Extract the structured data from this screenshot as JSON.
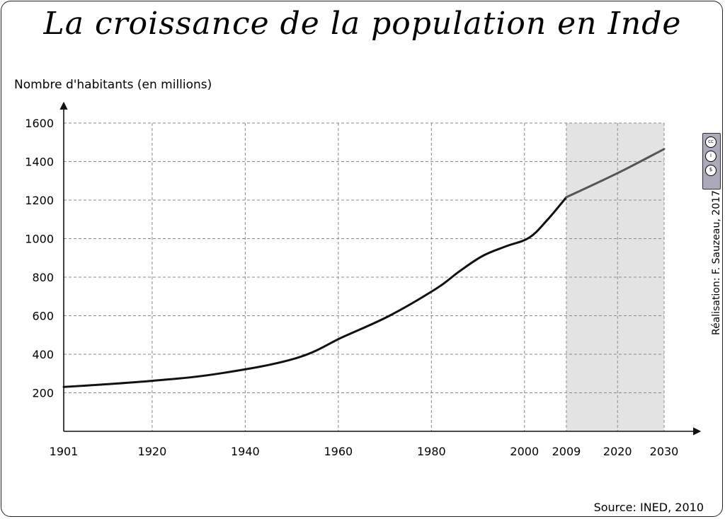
{
  "title": "La croissance de la population en Inde",
  "source": "Source: INED, 2010",
  "credit": "Réalisation: F. Sauzeau, 2017",
  "license_icon": "cc-by-nc-icon",
  "colors": {
    "line": "#111111",
    "projection_line": "#555555",
    "projection_band": "#e3e3e3",
    "grid": "#888888"
  },
  "chart_data": {
    "type": "line",
    "title": "La croissance de la population en Inde",
    "xlabel": "",
    "ylabel": "Nombre d'habitants (en millions)",
    "x_ticks": [
      "1901",
      "1920",
      "1940",
      "1960",
      "1980",
      "2000",
      "2009",
      "2020",
      "2030"
    ],
    "y_ticks": [
      200,
      400,
      600,
      800,
      1000,
      1200,
      1400,
      1600
    ],
    "xlim": [
      1901,
      2030
    ],
    "ylim": [
      0,
      1600
    ],
    "grid": true,
    "projection_from": 2009,
    "series": [
      {
        "values": [
          {
            "x": 1901,
            "y": 230
          },
          {
            "x": 1920,
            "y": 262
          },
          {
            "x": 1935,
            "y": 302
          },
          {
            "x": 1951,
            "y": 380
          },
          {
            "x": 1961,
            "y": 490
          },
          {
            "x": 1971,
            "y": 600
          },
          {
            "x": 1981,
            "y": 740
          },
          {
            "x": 1986,
            "y": 830
          },
          {
            "x": 1991,
            "y": 910
          },
          {
            "x": 1996,
            "y": 960
          },
          {
            "x": 2001,
            "y": 1005
          },
          {
            "x": 2005,
            "y": 1100
          },
          {
            "x": 2009,
            "y": 1215
          }
        ]
      },
      {
        "values": [
          {
            "x": 2009,
            "y": 1215
          },
          {
            "x": 2020,
            "y": 1340
          },
          {
            "x": 2030,
            "y": 1465
          }
        ]
      }
    ]
  }
}
